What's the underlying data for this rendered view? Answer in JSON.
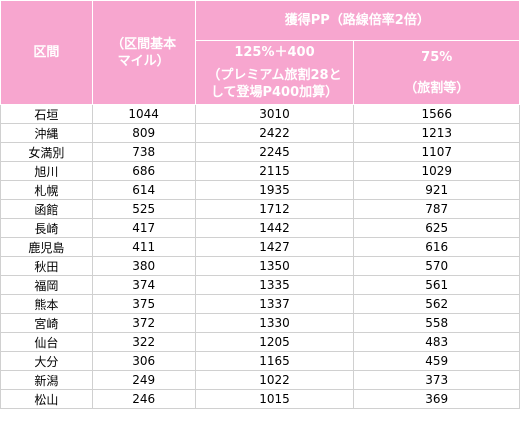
{
  "header": {
    "section": "区間",
    "base_miles_line1": "（区間基本",
    "base_miles_line2": "マイル）",
    "earned_pp": "獲得PP（路線倍率2倍）",
    "col3_line1": "125%＋400",
    "col3_line2": "（プレミアム旅割28と",
    "col3_line3": "して登場P400加算）",
    "col4_line1": "75%",
    "col4_line2": "（旅割等）"
  },
  "rows": [
    {
      "area": "石垣",
      "miles": "1044",
      "pp125": "3010",
      "pp75": "1566"
    },
    {
      "area": "沖縄",
      "miles": "809",
      "pp125": "2422",
      "pp75": "1213"
    },
    {
      "area": "女満別",
      "miles": "738",
      "pp125": "2245",
      "pp75": "1107"
    },
    {
      "area": "旭川",
      "miles": "686",
      "pp125": "2115",
      "pp75": "1029"
    },
    {
      "area": "札幌",
      "miles": "614",
      "pp125": "1935",
      "pp75": "921"
    },
    {
      "area": "函館",
      "miles": "525",
      "pp125": "1712",
      "pp75": "787"
    },
    {
      "area": "長崎",
      "miles": "417",
      "pp125": "1442",
      "pp75": "625"
    },
    {
      "area": "鹿児島",
      "miles": "411",
      "pp125": "1427",
      "pp75": "616"
    },
    {
      "area": "秋田",
      "miles": "380",
      "pp125": "1350",
      "pp75": "570"
    },
    {
      "area": "福岡",
      "miles": "374",
      "pp125": "1335",
      "pp75": "561"
    },
    {
      "area": "熊本",
      "miles": "375",
      "pp125": "1337",
      "pp75": "562"
    },
    {
      "area": "宮崎",
      "miles": "372",
      "pp125": "1330",
      "pp75": "558"
    },
    {
      "area": "仙台",
      "miles": "322",
      "pp125": "1205",
      "pp75": "483"
    },
    {
      "area": "大分",
      "miles": "306",
      "pp125": "1165",
      "pp75": "459"
    },
    {
      "area": "新潟",
      "miles": "249",
      "pp125": "1022",
      "pp75": "373"
    },
    {
      "area": "松山",
      "miles": "246",
      "pp125": "1015",
      "pp75": "369"
    }
  ],
  "colors": {
    "header_bg": "#f7a6cf",
    "header_text": "#ffffff",
    "grid": "#d0d0d0"
  }
}
